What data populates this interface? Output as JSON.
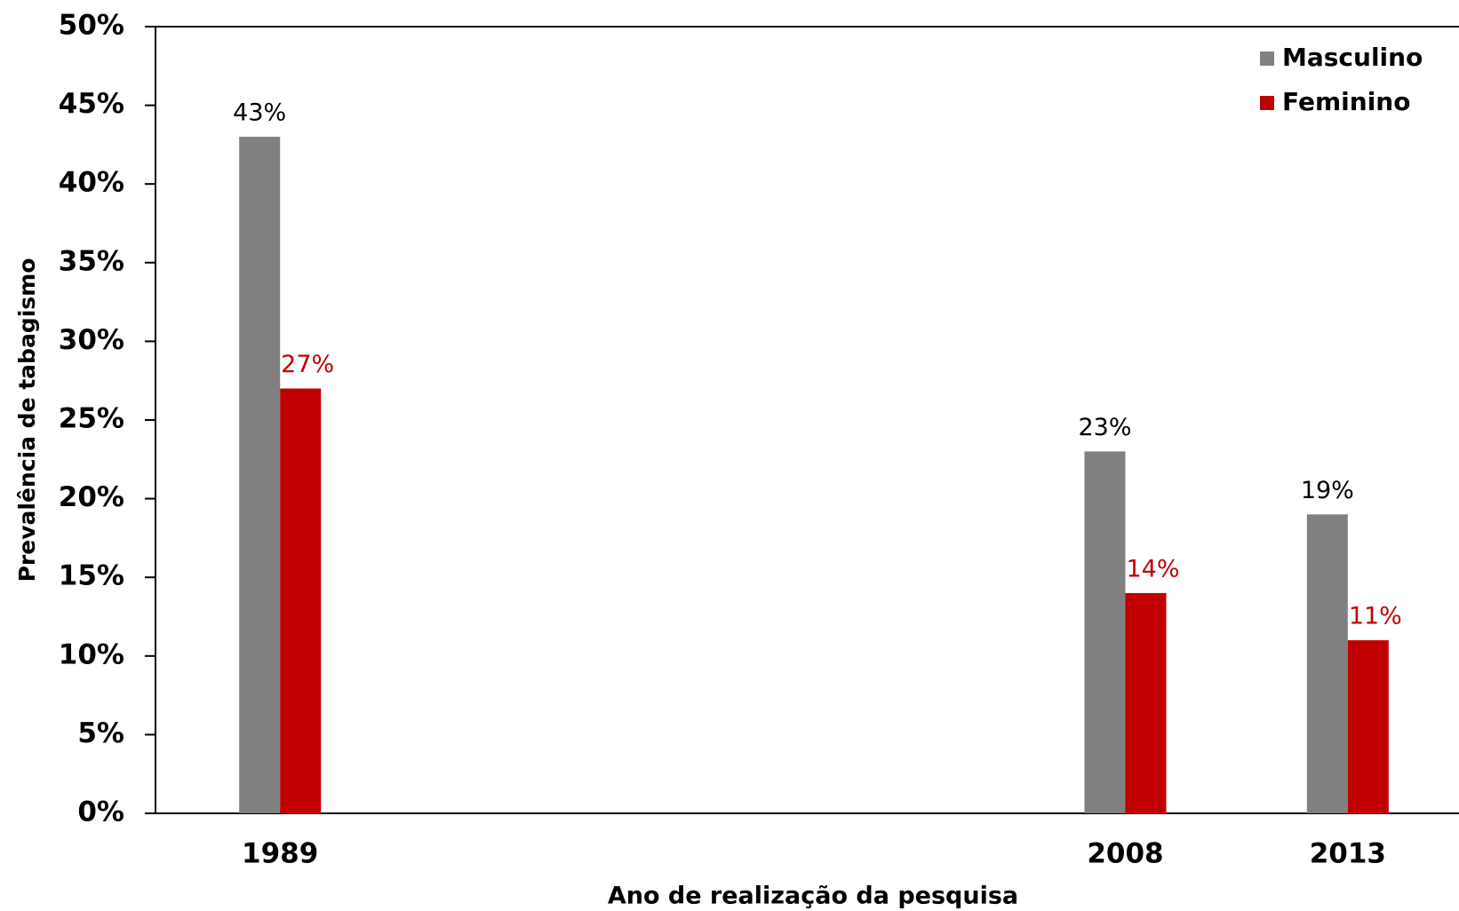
{
  "chart_data": {
    "type": "bar",
    "x": [
      1989,
      2008,
      2013
    ],
    "xlim": [
      1986.2,
      2015.5
    ],
    "xticks": [
      1989,
      2008,
      2013
    ],
    "series": [
      {
        "name": "Masculino",
        "color": "#808080",
        "values": [
          43,
          23,
          19
        ],
        "value_labels": [
          "43%",
          "23%",
          "19%"
        ],
        "label_color": "#000000"
      },
      {
        "name": "Feminino",
        "color": "#c00000",
        "values": [
          27,
          14,
          11
        ],
        "value_labels": [
          "27%",
          "14%",
          "11%"
        ],
        "label_color": "#c00000"
      }
    ],
    "ylim": [
      0,
      50
    ],
    "yticks": [
      {
        "value": 0,
        "label": "0%"
      },
      {
        "value": 5,
        "label": "5%"
      },
      {
        "value": 10,
        "label": "10%"
      },
      {
        "value": 15,
        "label": "15%"
      },
      {
        "value": 20,
        "label": "20%"
      },
      {
        "value": 25,
        "label": "25%"
      },
      {
        "value": 30,
        "label": "30%"
      },
      {
        "value": 35,
        "label": "35%"
      },
      {
        "value": 40,
        "label": "40%"
      },
      {
        "value": 45,
        "label": "45%"
      },
      {
        "value": 50,
        "label": "50%"
      }
    ],
    "xlabel": "Ano de realização da pesquisa",
    "ylabel": "Prevalência de tabagismo",
    "legend": "top-right"
  }
}
